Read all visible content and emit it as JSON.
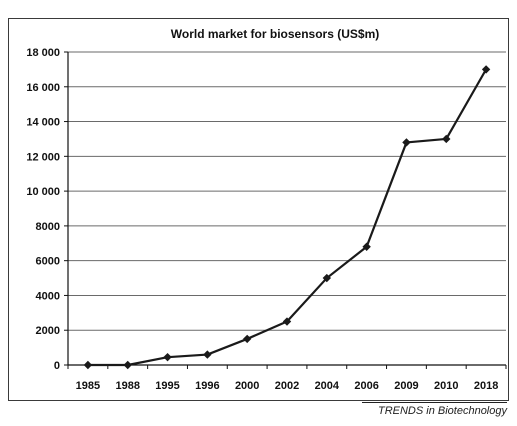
{
  "chart_data": {
    "type": "line",
    "title": "World market for biosensors (US$m)",
    "categories": [
      "1985",
      "1988",
      "1995",
      "1996",
      "2000",
      "2002",
      "2004",
      "2006",
      "2009",
      "2010",
      "2018"
    ],
    "series": [
      {
        "values": [
          0,
          0,
          450,
          600,
          1500,
          2500,
          5000,
          6800,
          12800,
          13000,
          17000
        ]
      }
    ],
    "ylim": [
      0,
      18000
    ],
    "yticks": [
      0,
      2000,
      4000,
      6000,
      8000,
      10000,
      12000,
      14000,
      16000,
      18000
    ],
    "ytick_labels": [
      "0",
      "2000",
      "4000",
      "6000",
      "8000",
      "10 000",
      "12 000",
      "14 000",
      "16 000",
      "18 000"
    ],
    "grid": true,
    "line_color": "#1a1a1a"
  },
  "source": "TRENDS in Biotechnology"
}
